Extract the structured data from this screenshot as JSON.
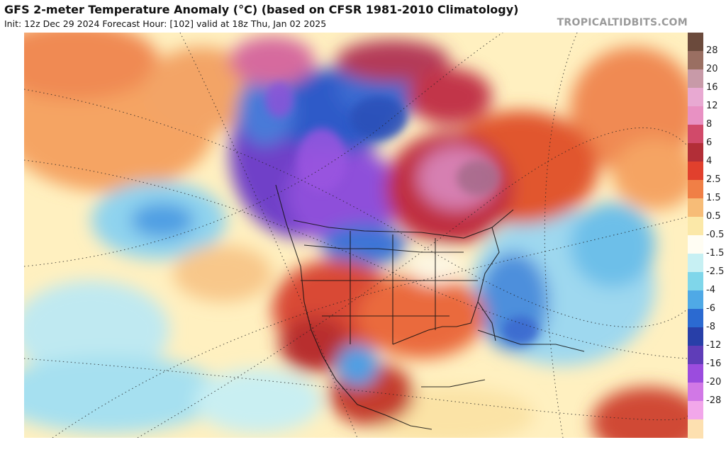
{
  "header": {
    "title": "GFS 2-meter Temperature Anomaly (°C) (based on CFSR 1981-2010 Climatology)",
    "subtitle": "Init: 12z Dec 29 2024   Forecast Hour: [102]   valid at 18z Thu, Jan 02 2025",
    "site": "TROPICALTIDBITS.COM"
  },
  "legend": {
    "labels": [
      "28",
      "20",
      "16",
      "12",
      "8",
      "6",
      "4",
      "2.5",
      "1.5",
      "0.5",
      "-0.5",
      "-1.5",
      "-2.5",
      "-4",
      "-6",
      "-8",
      "-12",
      "-16",
      "-20",
      "-28"
    ],
    "colors": [
      "#6b4a3c",
      "#9a6f62",
      "#c89aa8",
      "#e8a9d2",
      "#e891c3",
      "#d14a6a",
      "#b22e37",
      "#e1402d",
      "#f07f46",
      "#f7bc77",
      "#fbe8a8",
      "#fffdf3",
      "#c7f0f3",
      "#7fd6ea",
      "#4fa9e6",
      "#2b6ad1",
      "#283fa8",
      "#5f3db8",
      "#9b4cde",
      "#d178e6",
      "#f2a7ea",
      "#fde0b0"
    ]
  },
  "map": {
    "name": "North America temperature anomaly map"
  }
}
